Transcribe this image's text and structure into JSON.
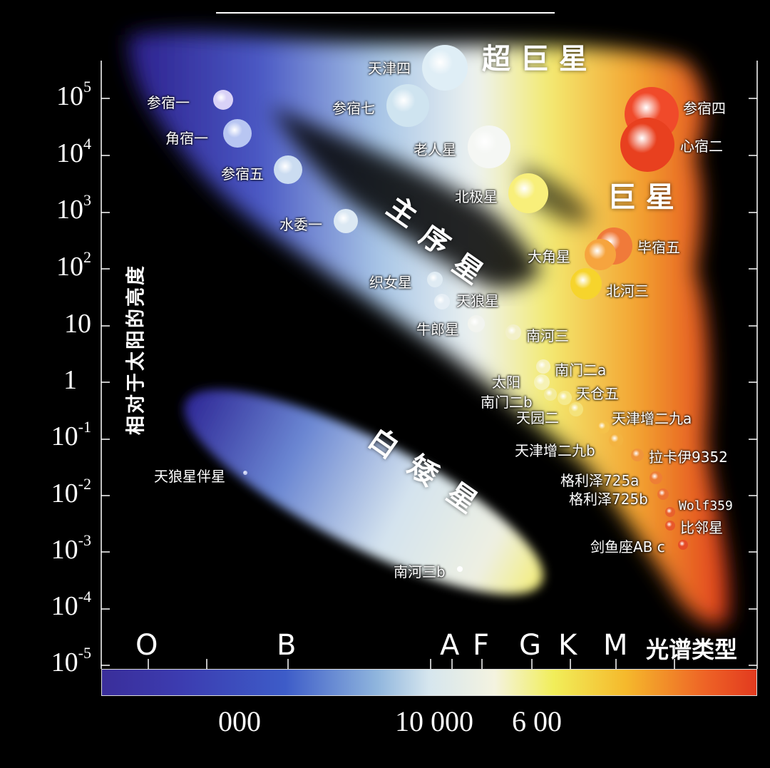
{
  "y_axis": {
    "label": "相对于太阳的亮度",
    "ticks": [
      {
        "base": "10",
        "exp": "5"
      },
      {
        "base": "10",
        "exp": "4"
      },
      {
        "base": "10",
        "exp": "3"
      },
      {
        "base": "10",
        "exp": "2"
      },
      {
        "base": "10",
        "exp": ""
      },
      {
        "base": "1",
        "exp": ""
      },
      {
        "base": "10",
        "exp": "-1"
      },
      {
        "base": "10",
        "exp": "-2"
      },
      {
        "base": "10",
        "exp": "-3"
      },
      {
        "base": "10",
        "exp": "-4"
      },
      {
        "base": "10",
        "exp": "-5"
      }
    ]
  },
  "spectral_classes": [
    "O",
    "B",
    "A",
    "F",
    "G",
    "K",
    "M"
  ],
  "spectral_title": "光谱类型",
  "temperature_ticks": [
    "000",
    "10 000",
    "6 00"
  ],
  "regions": {
    "supergiants": "超 巨 星",
    "giants": "巨 星",
    "main_sequence": [
      "主",
      "序",
      "星"
    ],
    "white_dwarfs": [
      "白",
      "矮",
      "星"
    ]
  },
  "stars": [
    {
      "name": "天津四",
      "color": "#dfeef6"
    },
    {
      "name": "参宿一",
      "color": "#d9d2f7"
    },
    {
      "name": "参宿七",
      "color": "#cfe4f0"
    },
    {
      "name": "角宿一",
      "color": "#b8c6f2"
    },
    {
      "name": "老人星",
      "color": "#f5f7f4"
    },
    {
      "name": "参宿五",
      "color": "#cbdcf1"
    },
    {
      "name": "北极星",
      "color": "#f8ef7a"
    },
    {
      "name": "参宿四",
      "color": "#f04a2a"
    },
    {
      "name": "心宿二",
      "color": "#e8401f"
    },
    {
      "name": "水委一",
      "color": "#dbe8f3"
    },
    {
      "name": "毕宿五",
      "color": "#f07a3a"
    },
    {
      "name": "大角星",
      "color": "#f6a43e"
    },
    {
      "name": "北河三",
      "color": "#f6d42c"
    },
    {
      "name": "织女星",
      "color": "#dfebf3"
    },
    {
      "name": "天狼星",
      "color": "#e5eef5"
    },
    {
      "name": "牛郎星",
      "color": "#f2f4ef"
    },
    {
      "name": "南河三",
      "color": "#f3f0c8"
    },
    {
      "name": "南门二a",
      "color": "#f6f1bb"
    },
    {
      "name": "太阳",
      "color": "#f6f2b4"
    },
    {
      "name": "南门二b",
      "color": "#f3eb99"
    },
    {
      "name": "天仓五",
      "color": "#f5ea8c"
    },
    {
      "name": "天园二",
      "color": "#f4e27a"
    },
    {
      "name": "天津增二九a",
      "color": "#f5c24a"
    },
    {
      "name": "天津增二九b",
      "color": "#f3b340"
    },
    {
      "name": "拉卡伊9352",
      "color": "#f0943a"
    },
    {
      "name": "格利泽725a",
      "color": "#ee7e35"
    },
    {
      "name": "格利泽725b",
      "color": "#ec7232"
    },
    {
      "name": "Wolf359",
      "color": "#e8602c"
    },
    {
      "name": "比邻星",
      "color": "#e8582a"
    },
    {
      "name": "剑鱼座AB c",
      "color": "#e64c26"
    },
    {
      "name": "天狼星伴星",
      "color": "#c6cdf0"
    },
    {
      "name": "南河三b",
      "color": "#ffffff"
    }
  ]
}
